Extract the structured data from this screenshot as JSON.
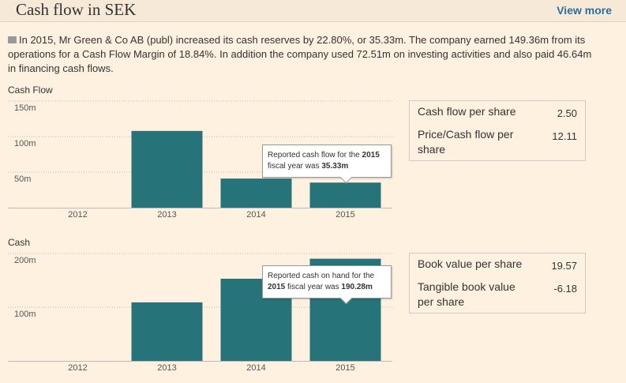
{
  "header": {
    "title": "Cash flow in SEK",
    "link": "View more"
  },
  "summary": "In 2015, Mr Green & Co AB (publ) increased its cash reserves by 22.80%, or 35.33m. The company earned 149.36m from its operations for a Cash Flow Margin of 18.84%. In addition the company used 72.51m on investing activities and also paid 46.64m in financing cash flows.",
  "chart_data": [
    {
      "type": "bar",
      "title": "Cash Flow",
      "categories": [
        "2012",
        "2013",
        "2014",
        "2015"
      ],
      "values": [
        null,
        108,
        41,
        35.33
      ],
      "color": "#27737a",
      "ylim": [
        0,
        150
      ],
      "yticks": [
        {
          "value": 50,
          "label": "50m"
        },
        {
          "value": 100,
          "label": "100m"
        },
        {
          "value": 150,
          "label": "150m"
        }
      ],
      "grid": true,
      "tooltip": {
        "parts": [
          {
            "text": "Reported cash flow for the ",
            "bold": false
          },
          {
            "text": "2015",
            "bold": true
          },
          {
            "text": " fiscal year was ",
            "bold": false
          },
          {
            "text": "35.33m",
            "bold": true
          }
        ]
      }
    },
    {
      "type": "bar",
      "title": "Cash",
      "categories": [
        "2012",
        "2013",
        "2014",
        "2015"
      ],
      "values": [
        null,
        109,
        153,
        190.28
      ],
      "color": "#27737a",
      "ylim": [
        0,
        200
      ],
      "yticks": [
        {
          "value": 100,
          "label": "100m"
        },
        {
          "value": 200,
          "label": "200m"
        }
      ],
      "grid": true,
      "tooltip": {
        "parts": [
          {
            "text": "Reported cash on hand for the ",
            "bold": false
          },
          {
            "text": "2015",
            "bold": true
          },
          {
            "text": " fiscal year was ",
            "bold": false
          },
          {
            "text": "190.28m",
            "bold": true
          }
        ]
      }
    }
  ],
  "stats": [
    {
      "rows": [
        {
          "label": "Cash flow per share",
          "value": "2.50"
        },
        {
          "label": "Price/Cash flow per share",
          "value": "12.11"
        }
      ]
    },
    {
      "rows": [
        {
          "label": "Book value per share",
          "value": "19.57"
        },
        {
          "label": "Tangible book value per share",
          "value": "-6.18"
        }
      ]
    }
  ]
}
